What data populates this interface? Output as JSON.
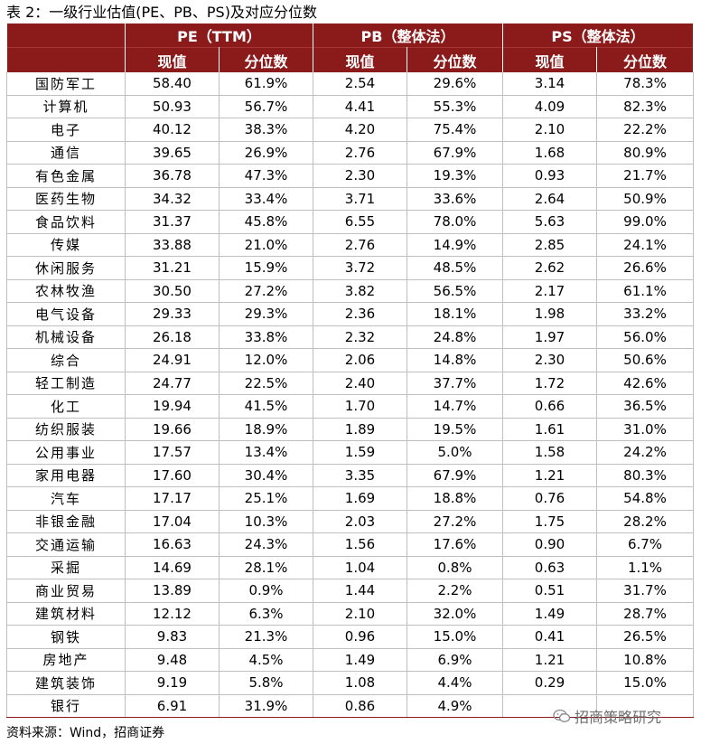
{
  "title": "表 2：一级行业估值(PE、PB、PS)及对应分位数",
  "table": {
    "groups": [
      "PE（TTM）",
      "PB（整体法）",
      "PS（整体法）"
    ],
    "subheaders": [
      "现值",
      "分位数",
      "现值",
      "分位数",
      "现值",
      "分位数"
    ],
    "rows": [
      [
        "国防军工",
        "58.40",
        "61.9%",
        "2.54",
        "29.6%",
        "3.14",
        "78.3%"
      ],
      [
        "计算机",
        "50.93",
        "56.7%",
        "4.41",
        "55.3%",
        "4.09",
        "82.3%"
      ],
      [
        "电子",
        "40.12",
        "38.3%",
        "4.20",
        "75.4%",
        "2.10",
        "22.2%"
      ],
      [
        "通信",
        "39.65",
        "26.9%",
        "2.76",
        "67.9%",
        "1.68",
        "80.9%"
      ],
      [
        "有色金属",
        "36.78",
        "47.3%",
        "2.30",
        "19.3%",
        "0.93",
        "21.7%"
      ],
      [
        "医药生物",
        "34.32",
        "33.4%",
        "3.71",
        "33.6%",
        "2.64",
        "50.9%"
      ],
      [
        "食品饮料",
        "31.37",
        "45.8%",
        "6.55",
        "78.0%",
        "5.63",
        "99.0%"
      ],
      [
        "传媒",
        "33.88",
        "21.0%",
        "2.76",
        "14.9%",
        "2.85",
        "24.1%"
      ],
      [
        "休闲服务",
        "31.21",
        "15.9%",
        "3.72",
        "48.5%",
        "2.62",
        "26.6%"
      ],
      [
        "农林牧渔",
        "30.50",
        "27.2%",
        "3.82",
        "56.5%",
        "2.17",
        "61.1%"
      ],
      [
        "电气设备",
        "29.33",
        "29.3%",
        "2.36",
        "18.1%",
        "1.98",
        "33.2%"
      ],
      [
        "机械设备",
        "26.18",
        "33.8%",
        "2.32",
        "24.8%",
        "1.97",
        "56.0%"
      ],
      [
        "综合",
        "24.91",
        "12.0%",
        "2.06",
        "14.8%",
        "2.30",
        "50.6%"
      ],
      [
        "轻工制造",
        "24.77",
        "22.5%",
        "2.40",
        "37.7%",
        "1.72",
        "42.6%"
      ],
      [
        "化工",
        "19.94",
        "41.5%",
        "1.70",
        "14.7%",
        "0.66",
        "36.5%"
      ],
      [
        "纺织服装",
        "19.66",
        "18.9%",
        "1.89",
        "19.5%",
        "1.61",
        "31.0%"
      ],
      [
        "公用事业",
        "17.57",
        "13.4%",
        "1.59",
        "5.0%",
        "1.58",
        "24.2%"
      ],
      [
        "家用电器",
        "17.60",
        "30.4%",
        "3.35",
        "67.9%",
        "1.21",
        "80.3%"
      ],
      [
        "汽车",
        "17.17",
        "25.1%",
        "1.69",
        "18.8%",
        "0.76",
        "54.8%"
      ],
      [
        "非银金融",
        "17.04",
        "10.3%",
        "2.03",
        "27.2%",
        "1.75",
        "28.2%"
      ],
      [
        "交通运输",
        "16.63",
        "24.3%",
        "1.56",
        "17.6%",
        "0.90",
        "6.7%"
      ],
      [
        "采掘",
        "14.69",
        "28.1%",
        "1.04",
        "0.8%",
        "0.63",
        "1.1%"
      ],
      [
        "商业贸易",
        "13.89",
        "0.9%",
        "1.44",
        "2.2%",
        "0.51",
        "31.7%"
      ],
      [
        "建筑材料",
        "12.12",
        "6.3%",
        "2.10",
        "32.0%",
        "1.49",
        "28.7%"
      ],
      [
        "钢铁",
        "9.83",
        "21.3%",
        "0.96",
        "15.0%",
        "0.41",
        "26.5%"
      ],
      [
        "房地产",
        "9.48",
        "4.5%",
        "1.49",
        "6.9%",
        "1.21",
        "10.8%"
      ],
      [
        "建筑装饰",
        "9.19",
        "5.8%",
        "1.08",
        "4.4%",
        "0.29",
        "15.0%"
      ],
      [
        "银行",
        "6.91",
        "31.9%",
        "0.86",
        "4.9%",
        "",
        ""
      ]
    ]
  },
  "source": "资料来源：Wind，招商证券",
  "watermark": {
    "icon": "wechat-icon",
    "text": "招商策略研究"
  }
}
